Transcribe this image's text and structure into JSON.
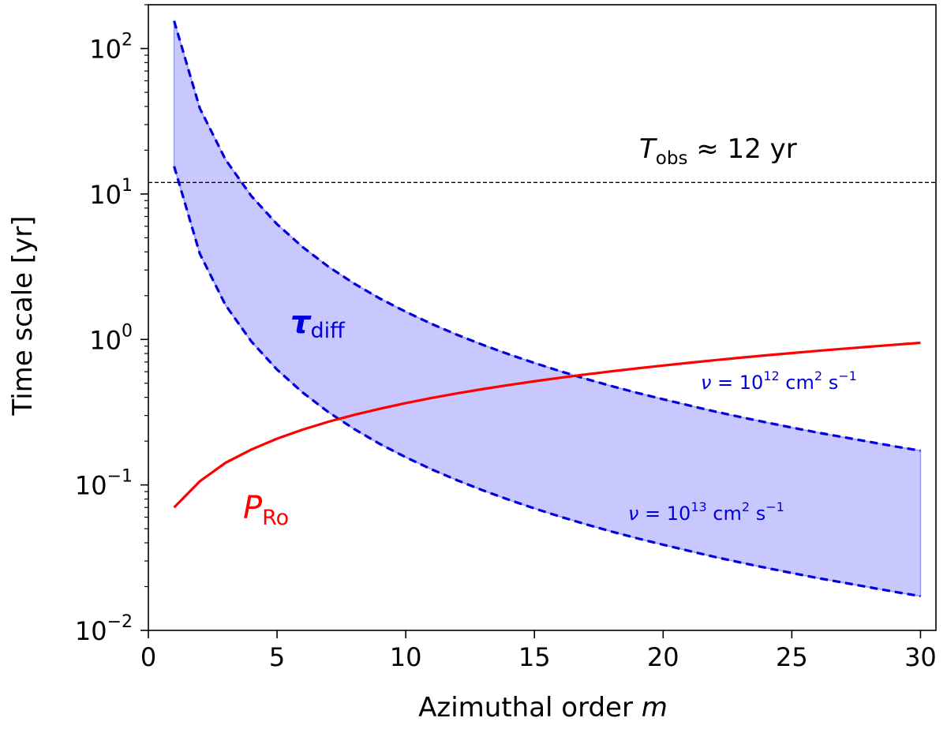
{
  "chart_data": {
    "type": "line",
    "title": "",
    "xlabel": "Azimuthal order",
    "xlabel_var": "m",
    "ylabel": "Time scale [yr]",
    "x_scale": "linear",
    "y_scale": "log",
    "xlim": [
      0,
      30.6
    ],
    "ylim": [
      0.01,
      200
    ],
    "x_ticks": [
      {
        "value": 0,
        "label": "0"
      },
      {
        "value": 5,
        "label": "5"
      },
      {
        "value": 10,
        "label": "10"
      },
      {
        "value": 15,
        "label": "15"
      },
      {
        "value": 20,
        "label": "20"
      },
      {
        "value": 25,
        "label": "25"
      },
      {
        "value": 30,
        "label": "30"
      }
    ],
    "y_ticks": [
      {
        "value": 0.01,
        "base": "10",
        "exp": "−2"
      },
      {
        "value": 0.1,
        "base": "10",
        "exp": "−1"
      },
      {
        "value": 1,
        "base": "10",
        "exp": "0"
      },
      {
        "value": 10,
        "base": "10",
        "exp": "1"
      },
      {
        "value": 100,
        "base": "10",
        "exp": "2"
      }
    ],
    "x": [
      1,
      2,
      3,
      4,
      5,
      6,
      7,
      8,
      9,
      10,
      11,
      12,
      13,
      14,
      15,
      16,
      17,
      18,
      19,
      20,
      21,
      22,
      23,
      24,
      25,
      26,
      27,
      28,
      29,
      30
    ],
    "series": [
      {
        "name": "tau_diff (nu = 10^12 cm^2 s^-1)",
        "style": "dashed",
        "color": "#0000dd",
        "values": [
          155,
          38.8,
          17.2,
          9.69,
          6.2,
          4.31,
          3.16,
          2.42,
          1.91,
          1.55,
          1.28,
          1.076,
          0.917,
          0.791,
          0.689,
          0.605,
          0.536,
          0.478,
          0.429,
          0.388,
          0.352,
          0.32,
          0.293,
          0.269,
          0.248,
          0.229,
          0.213,
          0.198,
          0.184,
          0.172
        ]
      },
      {
        "name": "tau_diff (nu = 10^13 cm^2 s^-1)",
        "style": "dashed",
        "color": "#0000dd",
        "values": [
          15.5,
          3.88,
          1.72,
          0.969,
          0.62,
          0.431,
          0.316,
          0.242,
          0.191,
          0.155,
          0.128,
          0.1076,
          0.0917,
          0.0791,
          0.0689,
          0.0605,
          0.0536,
          0.0478,
          0.0429,
          0.0388,
          0.0352,
          0.032,
          0.0293,
          0.0269,
          0.0248,
          0.0229,
          0.0213,
          0.0198,
          0.0184,
          0.0172
        ]
      },
      {
        "name": "P_Ro",
        "style": "solid",
        "color": "#ff0000",
        "values": [
          0.07,
          0.106,
          0.142,
          0.175,
          0.208,
          0.24,
          0.272,
          0.303,
          0.334,
          0.365,
          0.396,
          0.426,
          0.456,
          0.486,
          0.516,
          0.545,
          0.575,
          0.604,
          0.633,
          0.662,
          0.691,
          0.72,
          0.749,
          0.778,
          0.806,
          0.835,
          0.863,
          0.891,
          0.92,
          0.948
        ]
      }
    ],
    "fill_between": {
      "upper_series": 0,
      "lower_series": 1,
      "color": "#c8c8ff"
    },
    "hline": {
      "value": 12,
      "style": "dashed",
      "color": "#000000"
    },
    "annotations": {
      "tobs": {
        "var": "T",
        "sub": "obs",
        "text": " ≈ 12 yr"
      },
      "tau": {
        "var": "τ",
        "sub": "diff"
      },
      "pro": {
        "var": "P",
        "sub": "Ro"
      },
      "nu12": {
        "var": "ν",
        "eq": " = 10",
        "exp": "12",
        "unit": " cm",
        "unit_exp": "2",
        "s": " s",
        "s_exp": "−1"
      },
      "nu13": {
        "var": "ν",
        "eq": " = 10",
        "exp": "13",
        "unit": " cm",
        "unit_exp": "2",
        "s": " s",
        "s_exp": "−1"
      }
    }
  }
}
